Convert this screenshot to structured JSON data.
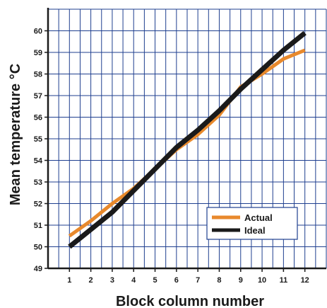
{
  "chart_data": {
    "type": "line",
    "title": "",
    "xlabel": "Block column number",
    "ylabel": "Mean temperature °C",
    "x": [
      1,
      2,
      3,
      4,
      5,
      6,
      7,
      8,
      9,
      10,
      11,
      12
    ],
    "xlim": [
      0,
      13
    ],
    "ylim": [
      49,
      61
    ],
    "y_ticks": [
      49,
      50,
      51,
      52,
      53,
      54,
      55,
      56,
      57,
      58,
      59,
      60
    ],
    "grid": true,
    "legend_position": "bottom-right",
    "series": [
      {
        "name": "Actual",
        "color": "#e8892c",
        "values": [
          50.5,
          51.2,
          52.0,
          52.7,
          53.6,
          54.5,
          55.2,
          56.1,
          57.4,
          58.0,
          58.7,
          59.1
        ]
      },
      {
        "name": "Ideal",
        "color": "#1a1a1a",
        "values": [
          50.0,
          50.8,
          51.6,
          52.6,
          53.6,
          54.6,
          55.4,
          56.3,
          57.3,
          58.2,
          59.1,
          59.9
        ]
      }
    ],
    "grid_color": "#1f3f8f"
  }
}
